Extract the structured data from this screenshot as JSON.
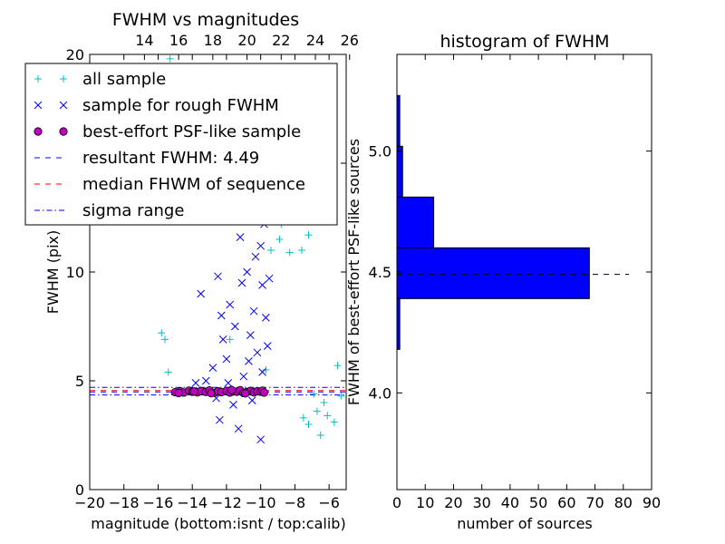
{
  "chart_data": [
    {
      "type": "scatter",
      "title": "FWHM vs magnitudes",
      "xlabel": "magnitude (bottom:isnt / top:calib)",
      "ylabel": "FWHM (pix)",
      "xlim": [
        -20,
        -5
      ],
      "ylim": [
        0,
        20
      ],
      "xticks": [
        -20,
        -18,
        -16,
        -14,
        -12,
        -10,
        -8,
        -6
      ],
      "xtick_labels": [
        "−20",
        "−18",
        "−16",
        "−14",
        "−12",
        "−10",
        "−8",
        "−6"
      ],
      "yticks": [
        0,
        5,
        10,
        15,
        20
      ],
      "ytick_labels": [
        "0",
        "5",
        "",
        "15",
        "20"
      ],
      "top_xaxis_ticks": [
        14,
        16,
        18,
        20,
        22,
        24,
        26
      ],
      "top_xaxis_offset": 30.8,
      "legend": {
        "placement": "upper-left",
        "entries": [
          {
            "label": "all sample",
            "marker": "+",
            "color": "#00bfbf"
          },
          {
            "label": "sample for rough FWHM",
            "marker": "x",
            "color": "#0000ff"
          },
          {
            "label": "best-effort PSF-like sample",
            "marker": "o",
            "color": "#bf00bf"
          },
          {
            "label": "resultant FWHM: 4.49",
            "marker": "dashed",
            "color": "#0000ff"
          },
          {
            "label": "median FHWM of sequence",
            "marker": "dashed",
            "color": "#ff0000"
          },
          {
            "label": "sigma range",
            "marker": "dashdot",
            "color": "#0000ff"
          }
        ]
      },
      "hlines": [
        {
          "y": 4.49,
          "style": "dashed",
          "color": "#0000ff"
        },
        {
          "y": 4.55,
          "style": "dashed",
          "color": "#ff0000"
        },
        {
          "y": 4.35,
          "style": "dashdot",
          "color": "#0000ff"
        },
        {
          "y": 4.7,
          "style": "dashdot",
          "color": "#0000ff"
        }
      ],
      "series": [
        {
          "name": "all sample",
          "marker": "+",
          "color": "#00bfbf",
          "points": [
            [
              -15.8,
              7.2
            ],
            [
              -15.4,
              5.4
            ],
            [
              -15.6,
              6.9
            ],
            [
              -15.3,
              19.8
            ],
            [
              -11.8,
              6.9
            ],
            [
              -9.7,
              5.5
            ],
            [
              -6.9,
              4.4
            ],
            [
              -6.3,
              4.0
            ],
            [
              -6.7,
              3.6
            ],
            [
              -5.5,
              5.7
            ],
            [
              -5.3,
              4.3
            ],
            [
              -5.7,
              3.1
            ],
            [
              -7.2,
              3.0
            ],
            [
              -7.5,
              3.3
            ],
            [
              -6.5,
              2.5
            ],
            [
              -6.1,
              3.4
            ],
            [
              -8.3,
              10.9
            ],
            [
              -8.0,
              13.3
            ],
            [
              -7.5,
              14.0
            ],
            [
              -7.0,
              13.0
            ],
            [
              -8.7,
              17.2
            ],
            [
              -9.2,
              16.0
            ],
            [
              -9.0,
              13.9
            ],
            [
              -8.4,
              15.3
            ],
            [
              -7.8,
              12.5
            ],
            [
              -7.6,
              11.0
            ],
            [
              -8.8,
              12.2
            ],
            [
              -9.4,
              11.0
            ],
            [
              -8.5,
              14.6
            ],
            [
              -7.3,
              13.6
            ],
            [
              -8.9,
              11.5
            ],
            [
              -8.1,
              16.2
            ],
            [
              -7.9,
              15.1
            ],
            [
              -6.9,
              12.4
            ],
            [
              -7.2,
              11.7
            ],
            [
              -8.6,
              13.1
            ],
            [
              -8.8,
              14.4
            ],
            [
              -9.3,
              15.2
            ],
            [
              -8.3,
              12.8
            ],
            [
              -7.7,
              13.9
            ]
          ]
        },
        {
          "name": "sample for rough FWHM",
          "marker": "x",
          "color": "#0000ff",
          "points": [
            [
              -13.5,
              9.0
            ],
            [
              -12.5,
              9.8
            ],
            [
              -12.2,
              6.9
            ],
            [
              -11.8,
              8.5
            ],
            [
              -11.2,
              11.6
            ],
            [
              -11.5,
              7.5
            ],
            [
              -10.8,
              10.0
            ],
            [
              -10.4,
              8.2
            ],
            [
              -10.0,
              11.2
            ],
            [
              -9.8,
              12.2
            ],
            [
              -9.6,
              13.2
            ],
            [
              -9.9,
              9.4
            ],
            [
              -10.6,
              7.1
            ],
            [
              -10.2,
              6.3
            ],
            [
              -12.0,
              6.0
            ],
            [
              -12.8,
              5.6
            ],
            [
              -13.2,
              5.0
            ],
            [
              -11.0,
              5.2
            ],
            [
              -10.7,
              5.9
            ],
            [
              -11.3,
              2.8
            ],
            [
              -10.0,
              2.3
            ],
            [
              -12.6,
              4.2
            ],
            [
              -11.9,
              4.9
            ],
            [
              -9.7,
              7.9
            ],
            [
              -9.5,
              9.7
            ],
            [
              -10.9,
              12.5
            ],
            [
              -12.3,
              8.0
            ],
            [
              -11.1,
              9.5
            ],
            [
              -10.3,
              10.7
            ],
            [
              -9.6,
              6.6
            ],
            [
              -9.9,
              5.4
            ],
            [
              -10.5,
              4.1
            ],
            [
              -11.6,
              3.9
            ],
            [
              -13.8,
              4.9
            ],
            [
              -12.4,
              3.2
            ]
          ]
        },
        {
          "name": "best-effort PSF-like sample",
          "marker": "o",
          "color": "#bf00bf",
          "points": [
            [
              -15.0,
              4.48
            ],
            [
              -14.7,
              4.52
            ],
            [
              -14.5,
              4.46
            ],
            [
              -14.2,
              4.55
            ],
            [
              -14.0,
              4.5
            ],
            [
              -13.7,
              4.47
            ],
            [
              -13.5,
              4.53
            ],
            [
              -13.2,
              4.49
            ],
            [
              -13.0,
              4.56
            ],
            [
              -12.7,
              4.45
            ],
            [
              -12.5,
              4.52
            ],
            [
              -12.3,
              4.48
            ],
            [
              -12.0,
              4.54
            ],
            [
              -11.8,
              4.46
            ],
            [
              -11.6,
              4.51
            ],
            [
              -11.4,
              4.5
            ],
            [
              -11.2,
              4.57
            ],
            [
              -11.0,
              4.44
            ],
            [
              -10.8,
              4.49
            ],
            [
              -10.6,
              4.53
            ],
            [
              -10.4,
              4.47
            ],
            [
              -10.2,
              4.52
            ],
            [
              -10.0,
              4.5
            ],
            [
              -9.9,
              4.55
            ],
            [
              -9.8,
              4.46
            ],
            [
              -12.9,
              4.43
            ],
            [
              -11.7,
              4.58
            ],
            [
              -10.9,
              4.42
            ],
            [
              -13.9,
              4.51
            ],
            [
              -14.8,
              4.44
            ]
          ]
        }
      ]
    },
    {
      "type": "bar",
      "orientation": "horizontal",
      "title": "histogram of FWHM",
      "xlabel": "number of sources",
      "ylabel": "FWHM of best-effort PSF-like sources",
      "xlim": [
        0,
        90
      ],
      "ylim": [
        3.6,
        5.4
      ],
      "xticks": [
        0,
        10,
        20,
        30,
        40,
        50,
        60,
        70,
        80,
        90
      ],
      "yticks": [
        4.0,
        4.5,
        5.0
      ],
      "ytick_labels": [
        "4.0",
        "4.5",
        "5.0"
      ],
      "bar_color": "#0000ff",
      "bins": [
        {
          "y0": 4.18,
          "y1": 4.39,
          "count": 1
        },
        {
          "y0": 4.39,
          "y1": 4.6,
          "count": 68
        },
        {
          "y0": 4.6,
          "y1": 4.81,
          "count": 13
        },
        {
          "y0": 4.81,
          "y1": 5.02,
          "count": 2
        },
        {
          "y0": 5.02,
          "y1": 5.23,
          "count": 1
        }
      ],
      "hline": {
        "y": 4.49,
        "style": "dashed",
        "color": "#000000",
        "x_end": 82
      }
    }
  ]
}
